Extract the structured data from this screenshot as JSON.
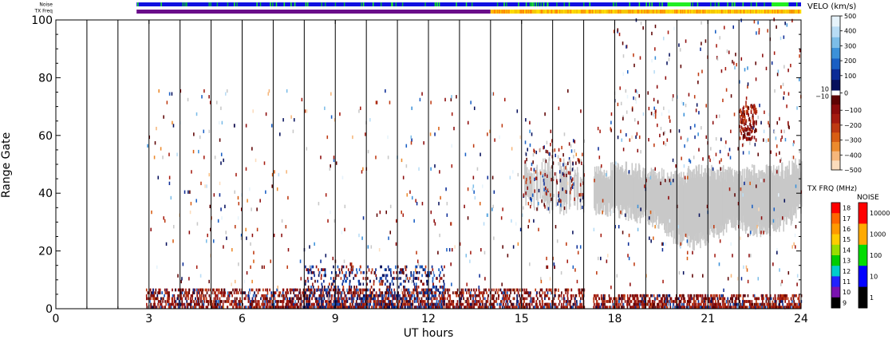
{
  "chart_data": {
    "type": "scatter",
    "subtype": "radar range-time plot",
    "xlabel": "UT hours",
    "ylabel": "Range Gate",
    "xlim": [
      0,
      24
    ],
    "ylim": [
      0,
      100
    ],
    "x_ticks": [
      0,
      3,
      6,
      9,
      12,
      15,
      18,
      21,
      24
    ],
    "x_tick_labels": [
      "0",
      "3",
      "6",
      "9",
      "12",
      "15",
      "18",
      "21",
      "24"
    ],
    "y_ticks": [
      0,
      20,
      40,
      60,
      80,
      100
    ],
    "y_tick_labels": [
      "0",
      "20",
      "40",
      "60",
      "80",
      "100"
    ],
    "scan_boundaries_ut": [
      1,
      2,
      3,
      4,
      5,
      6,
      7,
      8,
      9,
      10,
      11,
      12,
      13,
      14,
      15,
      16,
      17,
      18,
      19,
      20,
      21,
      22,
      23
    ],
    "data_gap_ut": [
      17.0,
      17.3
    ],
    "strip_labels": {
      "noise": "Noise",
      "tx_freq": "TX Freq"
    },
    "noise_strip": [
      {
        "from": 2.6,
        "to": 19.7,
        "color": "#1010e0"
      },
      {
        "from": 19.7,
        "to": 20.45,
        "color": "#22ee22"
      },
      {
        "from": 20.45,
        "to": 23.05,
        "color": "#1010e0"
      },
      {
        "from": 23.05,
        "to": 23.6,
        "color": "#22ee22"
      },
      {
        "from": 23.6,
        "to": 24.0,
        "color": "#1010e0"
      }
    ],
    "tx_freq_strip": [
      {
        "from": 2.6,
        "to": 14.0,
        "color": "#6a0d8a"
      },
      {
        "from": 14.0,
        "to": 23.6,
        "color": "#f5c800"
      },
      {
        "from": 23.6,
        "to": 24.0,
        "color": "#f5a000"
      }
    ],
    "velocity_scale": {
      "title": "VELO (km/s)",
      "ticks": [
        "500",
        "400",
        "300",
        "200",
        "100",
        "0",
        "−100",
        "−200",
        "−300",
        "−400",
        "−500"
      ],
      "center_labels": [
        "10",
        "−10"
      ],
      "colors": [
        "#e6f3fb",
        "#b8dcf5",
        "#7cbde8",
        "#3c91d9",
        "#1a5fc4",
        "#0c2c96",
        "#06105c",
        "#5e0303",
        "#8c0c0c",
        "#a51b10",
        "#be3a12",
        "#d85e14",
        "#ec8a2c",
        "#f6b67a",
        "#fbdcbc"
      ],
      "ground_scatter_color": "#c8c8c8"
    },
    "tx_freq_scale": {
      "title": "TX FRQ (MHz)",
      "ticks": [
        "18",
        "17",
        "16",
        "15",
        "14",
        "13",
        "12",
        "11",
        "10",
        "9"
      ],
      "colors": [
        "#ff0000",
        "#ff6600",
        "#ff9900",
        "#ffcc00",
        "#99dd00",
        "#00cc00",
        "#00cccc",
        "#2222ff",
        "#7a12b0",
        "#000000"
      ]
    },
    "noise_scale": {
      "title": "NOISE",
      "ticks": [
        "10000",
        "1000",
        "100",
        "10",
        "1"
      ],
      "colors": [
        "#ff0000",
        "#ffaa00",
        "#00dd00",
        "#0000ff",
        "#000000"
      ]
    },
    "series": [
      {
        "type": "ground_scatter_band",
        "color_key": "ground",
        "ut": [
          15.0,
          15.5,
          16.0,
          16.5,
          16.9,
          17.5,
          18.0,
          18.5,
          19.0,
          19.5,
          20.0,
          20.5,
          21.0,
          21.5,
          22.0,
          22.5,
          23.0,
          23.5,
          24.0
        ],
        "gate_low": [
          38,
          36,
          34,
          35,
          36,
          35,
          34,
          33,
          32,
          30,
          24,
          23,
          25,
          28,
          30,
          27,
          28,
          30,
          35
        ],
        "gate_high": [
          48,
          50,
          50,
          49,
          47,
          47,
          48,
          48,
          47,
          46,
          45,
          47,
          47,
          47,
          46,
          47,
          47,
          48,
          50
        ]
      },
      {
        "type": "near_range_echoes",
        "color_key": "red_dominant",
        "ut_range": [
          2.9,
          17.0
        ],
        "gate_range": [
          0,
          6
        ]
      },
      {
        "type": "near_range_echoes",
        "color_key": "blue_dominant",
        "ut_range": [
          8.0,
          12.5
        ],
        "gate_range": [
          0,
          14
        ]
      },
      {
        "type": "near_range_echoes",
        "color_key": "red_dominant",
        "ut_range": [
          17.3,
          24.0
        ],
        "gate_range": [
          0,
          4
        ]
      },
      {
        "type": "scattered_echoes",
        "color_key": "mixed",
        "ut_range": [
          2.9,
          24.0
        ],
        "gate_range": [
          0,
          100
        ]
      },
      {
        "type": "velocity_patch",
        "color_key": "red_dominant",
        "ut_range": [
          22.0,
          22.55
        ],
        "gate_range": [
          58,
          70
        ]
      }
    ]
  }
}
